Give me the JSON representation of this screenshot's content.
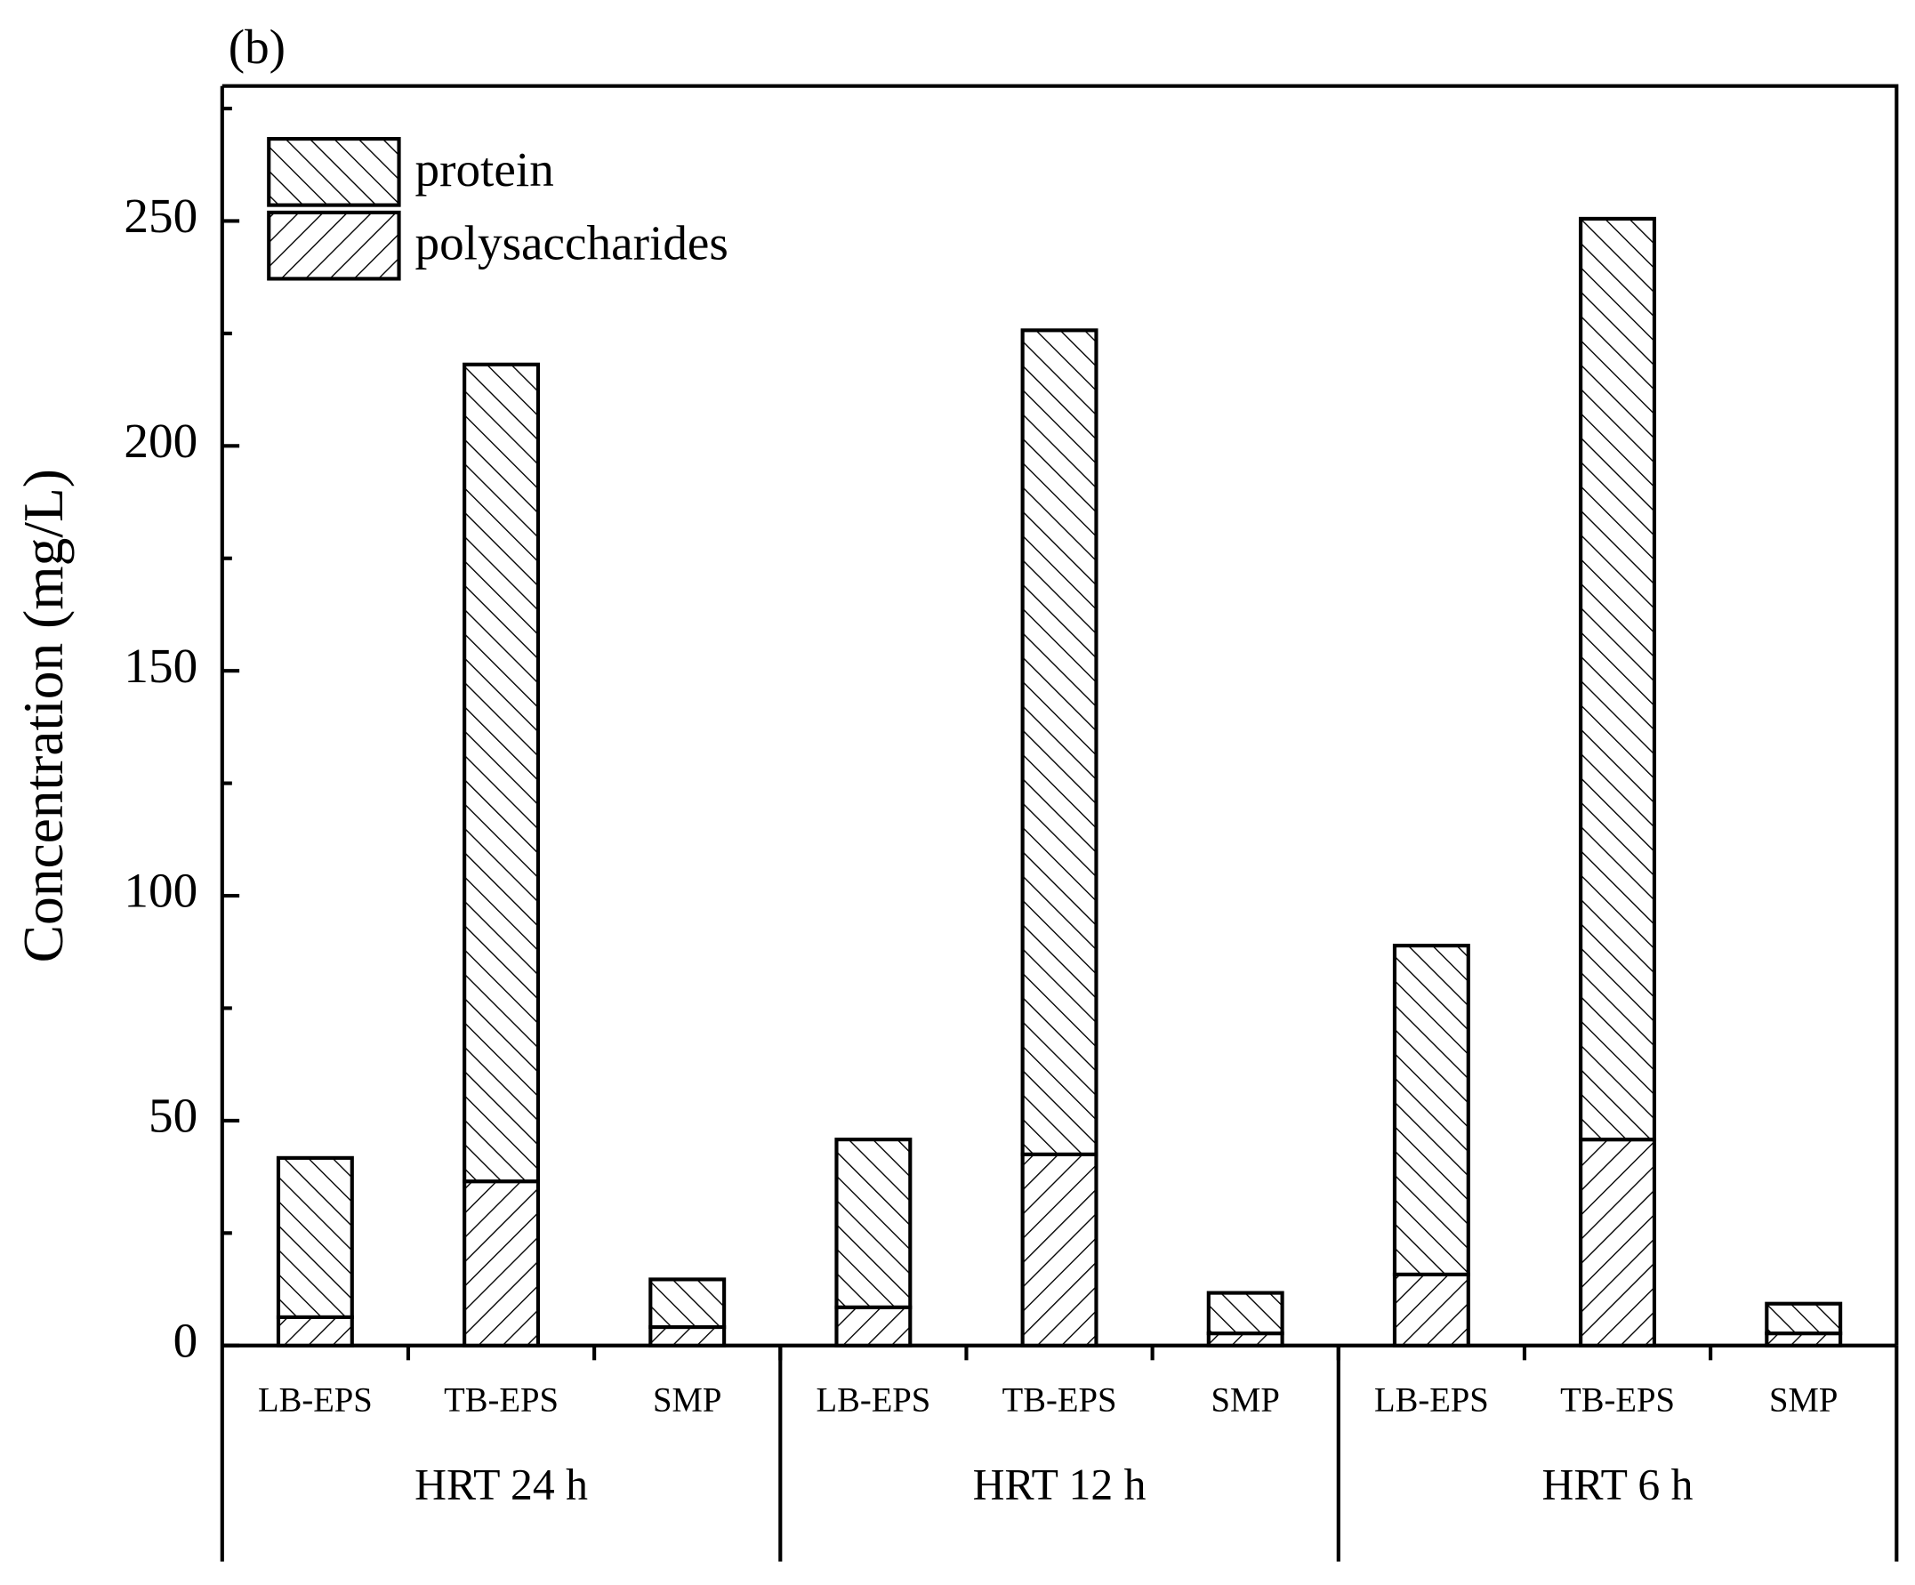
{
  "chart_data": {
    "type": "stacked-bar",
    "panel_label": "(b)",
    "ylabel": "Concentration (mg/L)",
    "categories": [
      "LB-EPS",
      "TB-EPS",
      "SMP",
      "LB-EPS",
      "TB-EPS",
      "SMP",
      "LB-EPS",
      "TB-EPS",
      "SMP"
    ],
    "groups": [
      "HRT 24 h",
      "HRT 12 h",
      "HRT 6 h"
    ],
    "series": [
      {
        "name": "protein",
        "color": "#ffffff",
        "hatch": "\\",
        "values": [
          35.4,
          181.6,
          10.6,
          37.3,
          183.2,
          9.0,
          73.1,
          204.7,
          6.6
        ]
      },
      {
        "name": "polysaccharides",
        "color": "#ffffff",
        "hatch": "/",
        "values": [
          6.3,
          36.5,
          4.1,
          8.5,
          42.5,
          2.7,
          15.8,
          45.8,
          2.7
        ]
      }
    ],
    "ylim": [
      0,
      280
    ],
    "yticks": [
      0,
      50,
      100,
      150,
      200,
      250
    ],
    "yminorticks": [
      25,
      75,
      125,
      175,
      225,
      275
    ],
    "legend": "upper left"
  }
}
